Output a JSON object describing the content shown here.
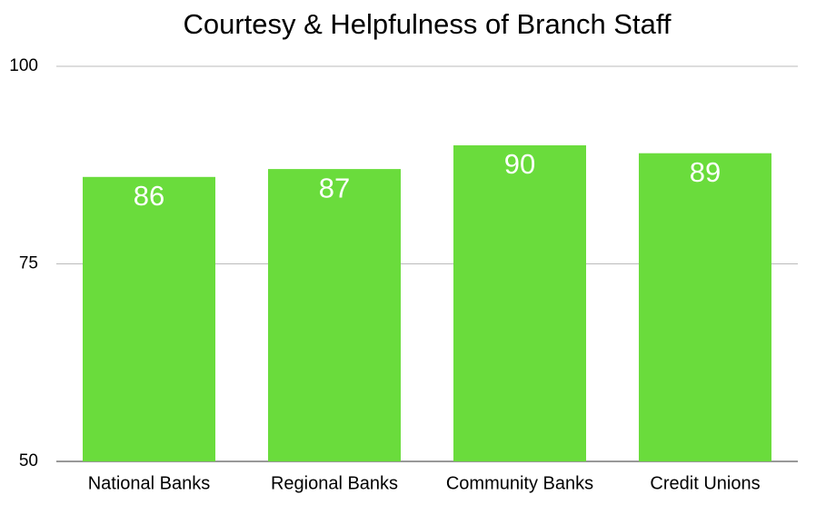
{
  "chart_data": {
    "type": "bar",
    "title": "Courtesy & Helpfulness of Branch Staff",
    "categories": [
      "National Banks",
      "Regional Banks",
      "Community Banks",
      "Credit Unions"
    ],
    "values": [
      86,
      87,
      90,
      89
    ],
    "color": "#6adc3c",
    "ylim": [
      50,
      100
    ],
    "yticks": [
      50,
      75,
      100
    ],
    "grid": true
  }
}
